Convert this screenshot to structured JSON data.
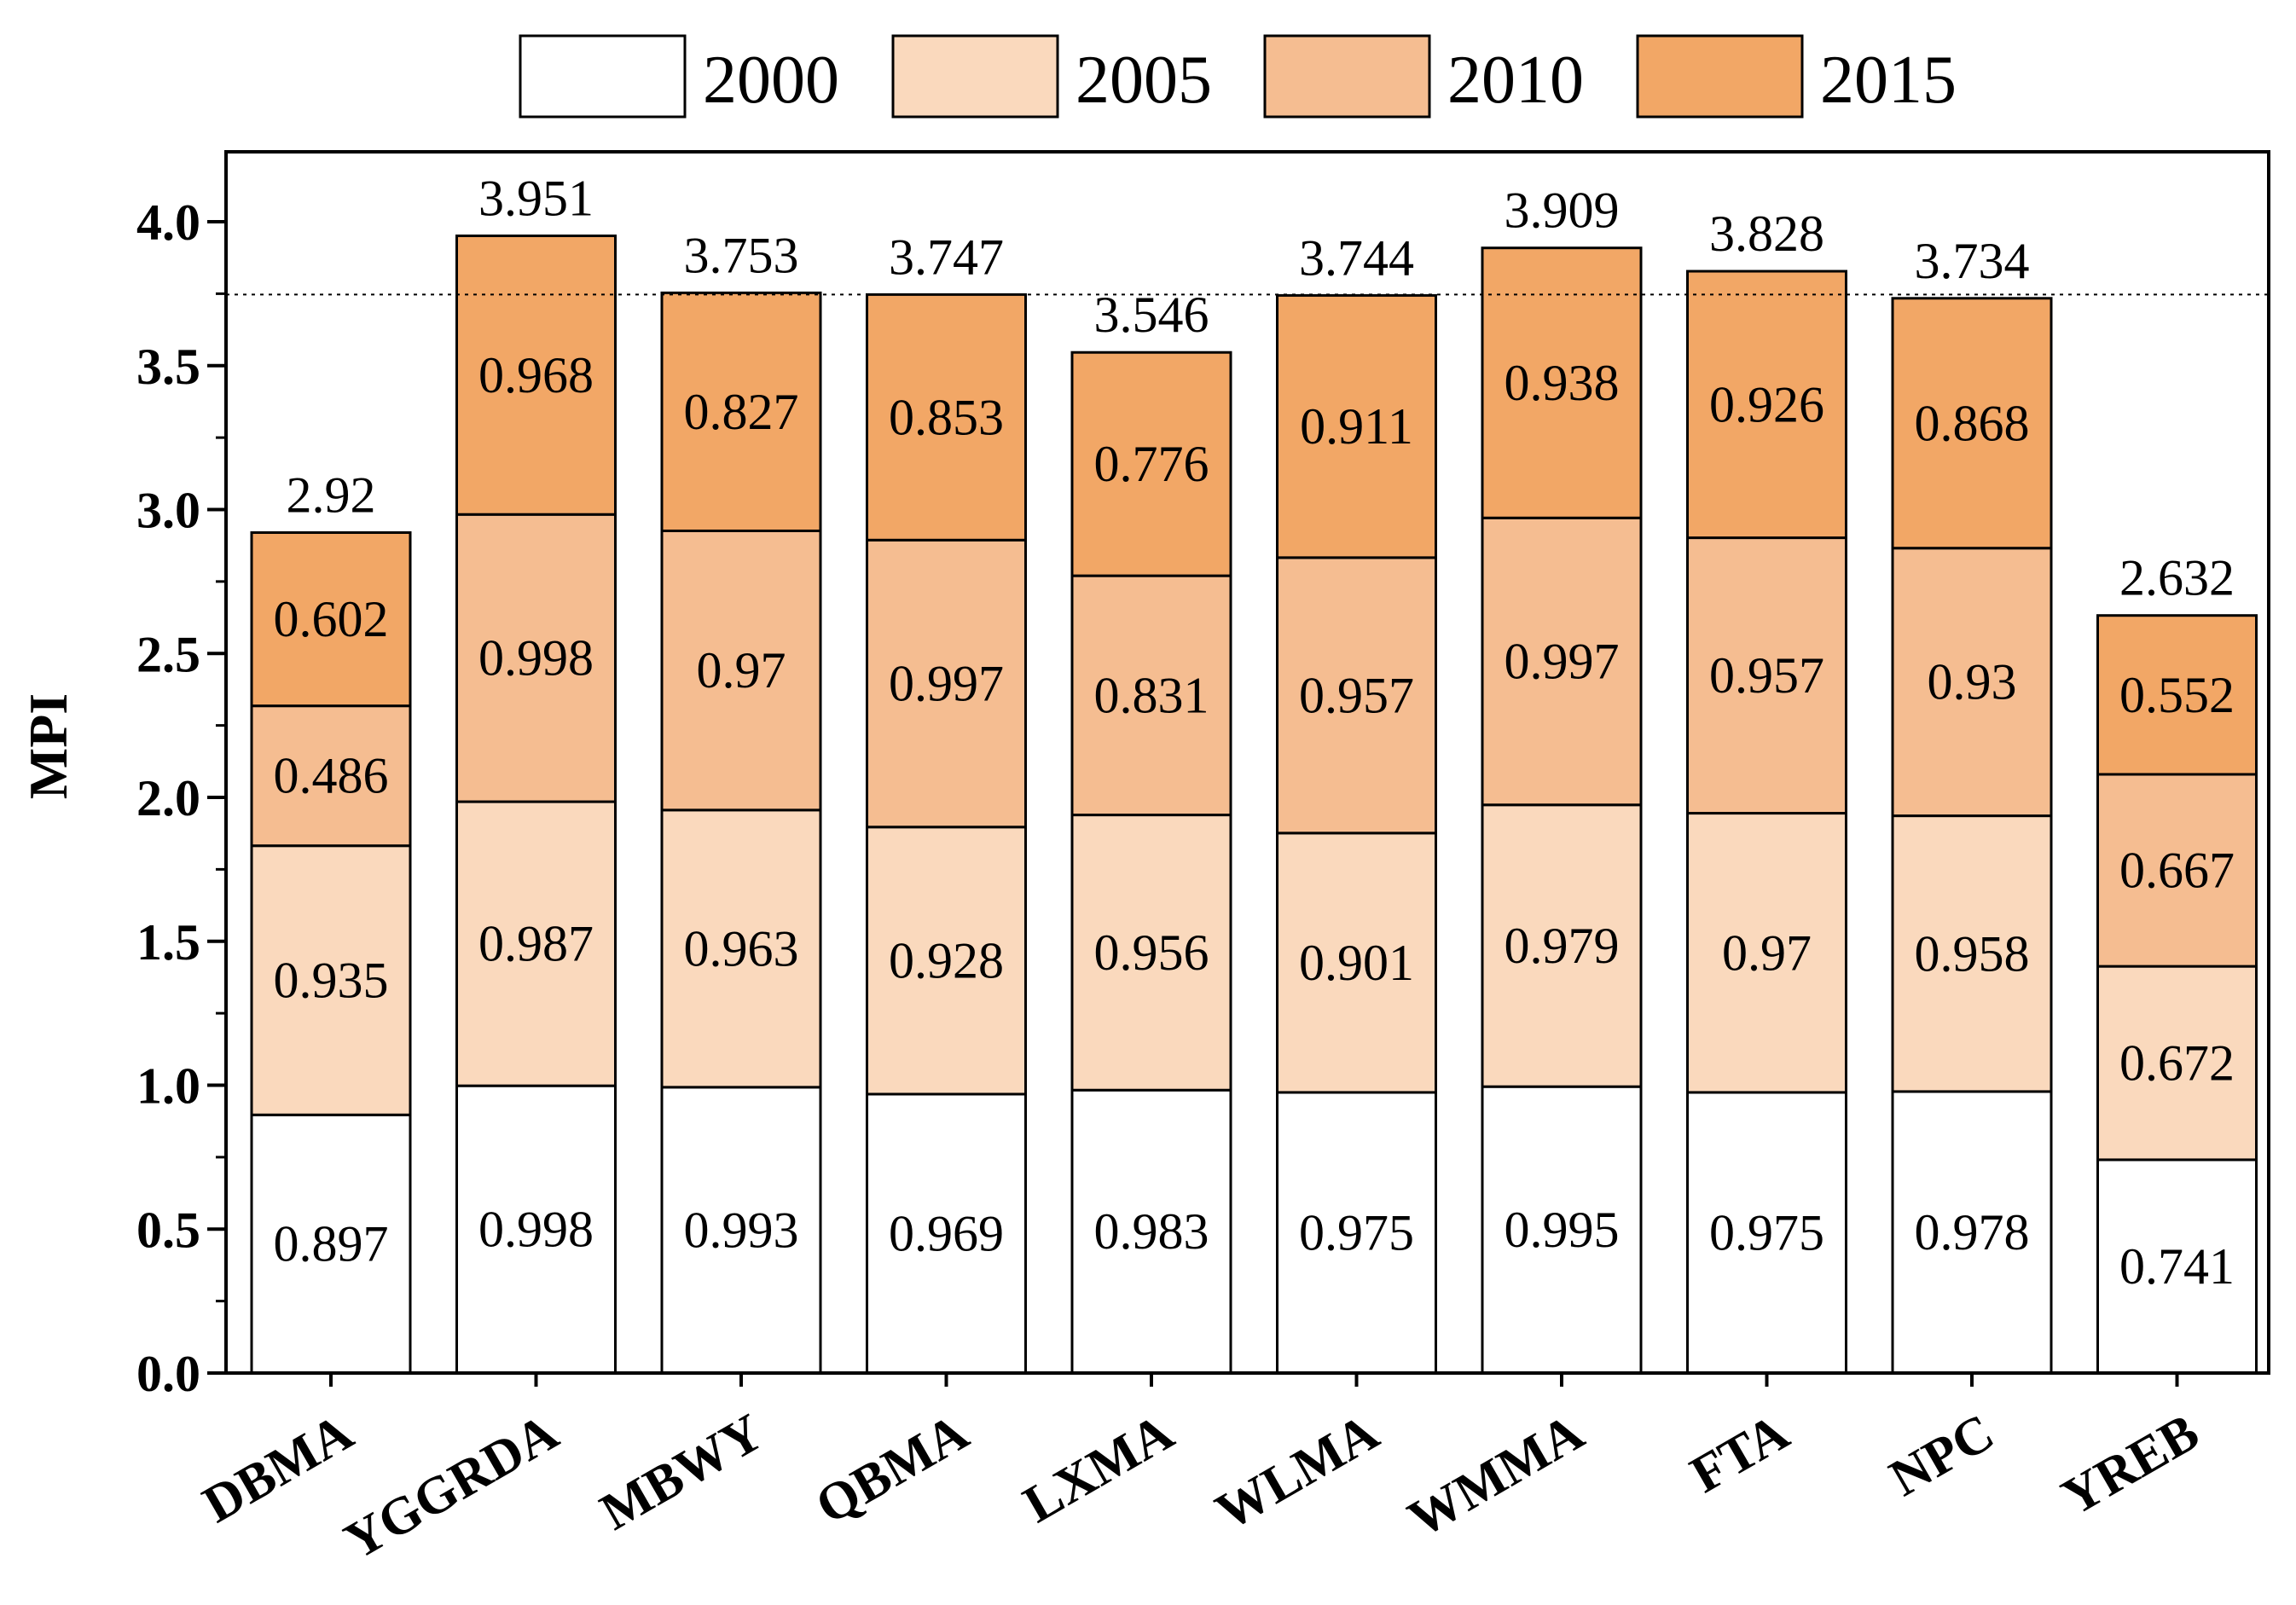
{
  "chart_data": {
    "type": "bar",
    "stacked": true,
    "title": "",
    "xlabel": "",
    "ylabel": "MPI",
    "ylim": [
      0,
      4.2
    ],
    "yticks": [
      "0.0",
      "0.5",
      "1.0",
      "1.5",
      "2.0",
      "2.5",
      "3.0",
      "3.5",
      "4.0"
    ],
    "grid": false,
    "legend_position": "top",
    "reference_line": 3.747,
    "categories": [
      "DBMA",
      "YGGRDA",
      "MBWY",
      "QBMA",
      "LXMA",
      "WLMA",
      "WMMA",
      "FTA",
      "NPC",
      "YREB"
    ],
    "series": [
      {
        "name": "2000",
        "color": "#ffffff",
        "values": [
          0.897,
          0.998,
          0.993,
          0.969,
          0.983,
          0.975,
          0.995,
          0.975,
          0.978,
          0.741
        ],
        "labels": [
          "0.897",
          "0.998",
          "0.993",
          "0.969",
          "0.983",
          "0.975",
          "0.995",
          "0.975",
          "0.978",
          "0.741"
        ]
      },
      {
        "name": "2005",
        "color": "#fad9bd",
        "values": [
          0.935,
          0.987,
          0.963,
          0.928,
          0.956,
          0.901,
          0.979,
          0.97,
          0.958,
          0.672
        ],
        "labels": [
          "0.935",
          "0.987",
          "0.963",
          "0.928",
          "0.956",
          "0.901",
          "0.979",
          "0.97",
          "0.958",
          "0.672"
        ]
      },
      {
        "name": "2010",
        "color": "#f5bd91",
        "values": [
          0.486,
          0.998,
          0.97,
          0.997,
          0.831,
          0.957,
          0.997,
          0.957,
          0.93,
          0.667
        ],
        "labels": [
          "0.486",
          "0.998",
          "0.97",
          "0.997",
          "0.831",
          "0.957",
          "0.997",
          "0.957",
          "0.93",
          "0.667"
        ]
      },
      {
        "name": "2015",
        "color": "#f2a766",
        "values": [
          0.602,
          0.968,
          0.827,
          0.853,
          0.776,
          0.911,
          0.938,
          0.926,
          0.868,
          0.552
        ],
        "labels": [
          "0.602",
          "0.968",
          "0.827",
          "0.853",
          "0.776",
          "0.911",
          "0.938",
          "0.926",
          "0.868",
          "0.552"
        ]
      }
    ],
    "totals": [
      2.92,
      3.951,
      3.753,
      3.747,
      3.546,
      3.744,
      3.909,
      3.828,
      3.734,
      2.632
    ],
    "total_labels": [
      "2.92",
      "3.951",
      "3.753",
      "3.747",
      "3.546",
      "3.744",
      "3.909",
      "3.828",
      "3.734",
      "2.632"
    ]
  }
}
